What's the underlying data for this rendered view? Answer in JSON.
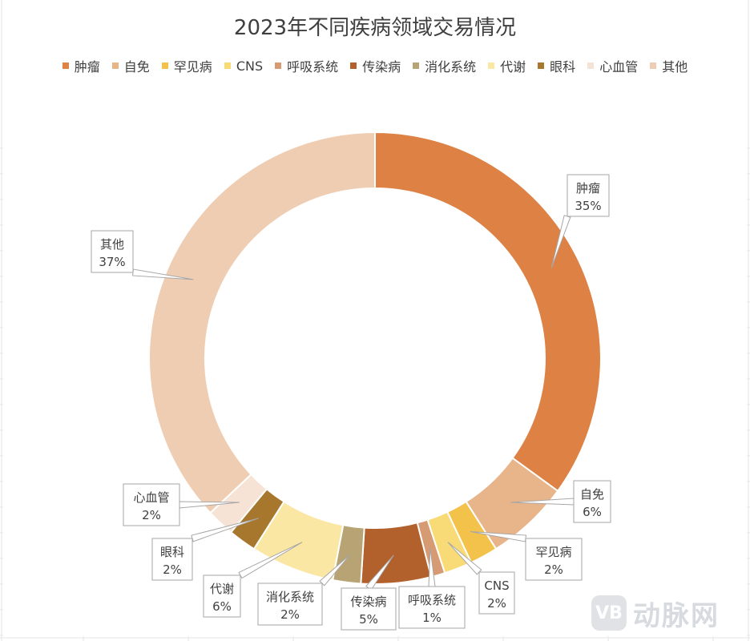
{
  "chart_data": {
    "type": "pie",
    "title": "2023年不同疾病领域交易情况",
    "legend_position": "top",
    "slices": [
      {
        "name": "肿瘤",
        "value": 35,
        "label": "35%",
        "color": "#dd8144"
      },
      {
        "name": "自免",
        "value": 6,
        "label": "6%",
        "color": "#e8b489"
      },
      {
        "name": "罕见病",
        "value": 2,
        "label": "2%",
        "color": "#f2c24a"
      },
      {
        "name": "CNS",
        "value": 2,
        "label": "2%",
        "color": "#f8db76"
      },
      {
        "name": "呼吸系统",
        "value": 1,
        "label": "1%",
        "color": "#d79b74"
      },
      {
        "name": "传染病",
        "value": 5,
        "label": "5%",
        "color": "#b2602c"
      },
      {
        "name": "消化系统",
        "value": 2,
        "label": "2%",
        "color": "#b8a374"
      },
      {
        "name": "代谢",
        "value": 6,
        "label": "6%",
        "color": "#fbe7a4"
      },
      {
        "name": "眼科",
        "value": 2,
        "label": "2%",
        "color": "#a8772e"
      },
      {
        "name": "心血管",
        "value": 2,
        "label": "2%",
        "color": "#f6e3d5"
      },
      {
        "name": "其他",
        "value": 37,
        "label": "37%",
        "color": "#efcdb3"
      }
    ]
  },
  "watermark": {
    "logo": "VB",
    "text": "动脉网"
  }
}
